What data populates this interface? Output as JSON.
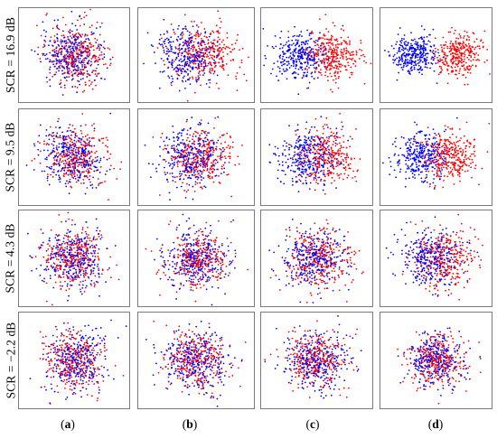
{
  "figure": {
    "row_labels": [
      "SCR = 16.9 dB",
      "SCR = 9.5 dB",
      "SCR = 4.3 dB",
      "SCR = −2.2 dB"
    ],
    "column_labels": [
      "a",
      "b",
      "c",
      "d"
    ]
  },
  "colors": {
    "class_1": "#0000ff",
    "class_2": "#ff0000"
  },
  "chart_data": [
    {
      "type": "scatter",
      "row": "SCR = 16.9 dB",
      "column": "a",
      "class_separation": 0.35,
      "points_per_class": 320,
      "spread": 1.0
    },
    {
      "type": "scatter",
      "row": "SCR = 16.9 dB",
      "column": "b",
      "class_separation": 1.0,
      "points_per_class": 320,
      "spread": 1.0
    },
    {
      "type": "scatter",
      "row": "SCR = 16.9 dB",
      "column": "c",
      "class_separation": 2.0,
      "points_per_class": 320,
      "spread": 0.85
    },
    {
      "type": "scatter",
      "row": "SCR = 16.9 dB",
      "column": "d",
      "class_separation": 2.7,
      "points_per_class": 320,
      "spread": 0.7
    },
    {
      "type": "scatter",
      "row": "SCR = 9.5 dB",
      "column": "a",
      "class_separation": 0.25,
      "points_per_class": 320,
      "spread": 1.0
    },
    {
      "type": "scatter",
      "row": "SCR = 9.5 dB",
      "column": "b",
      "class_separation": 0.6,
      "points_per_class": 320,
      "spread": 1.0
    },
    {
      "type": "scatter",
      "row": "SCR = 9.5 dB",
      "column": "c",
      "class_separation": 1.2,
      "points_per_class": 320,
      "spread": 0.95
    },
    {
      "type": "scatter",
      "row": "SCR = 9.5 dB",
      "column": "d",
      "class_separation": 1.8,
      "points_per_class": 320,
      "spread": 0.85
    },
    {
      "type": "scatter",
      "row": "SCR = 4.3 dB",
      "column": "a",
      "class_separation": 0.1,
      "points_per_class": 320,
      "spread": 1.0
    },
    {
      "type": "scatter",
      "row": "SCR = 4.3 dB",
      "column": "b",
      "class_separation": 0.2,
      "points_per_class": 320,
      "spread": 1.0
    },
    {
      "type": "scatter",
      "row": "SCR = 4.3 dB",
      "column": "c",
      "class_separation": 0.4,
      "points_per_class": 320,
      "spread": 1.0
    },
    {
      "type": "scatter",
      "row": "SCR = 4.3 dB",
      "column": "d",
      "class_separation": 0.9,
      "points_per_class": 320,
      "spread": 1.0
    },
    {
      "type": "scatter",
      "row": "SCR = −2.2 dB",
      "column": "a",
      "class_separation": 0.0,
      "points_per_class": 320,
      "spread": 1.0
    },
    {
      "type": "scatter",
      "row": "SCR = −2.2 dB",
      "column": "b",
      "class_separation": 0.0,
      "points_per_class": 320,
      "spread": 1.0
    },
    {
      "type": "scatter",
      "row": "SCR = −2.2 dB",
      "column": "c",
      "class_separation": 0.1,
      "points_per_class": 320,
      "spread": 1.0
    },
    {
      "type": "scatter",
      "row": "SCR = −2.2 dB",
      "column": "d",
      "class_separation": 0.15,
      "points_per_class": 320,
      "spread": 0.9
    }
  ]
}
